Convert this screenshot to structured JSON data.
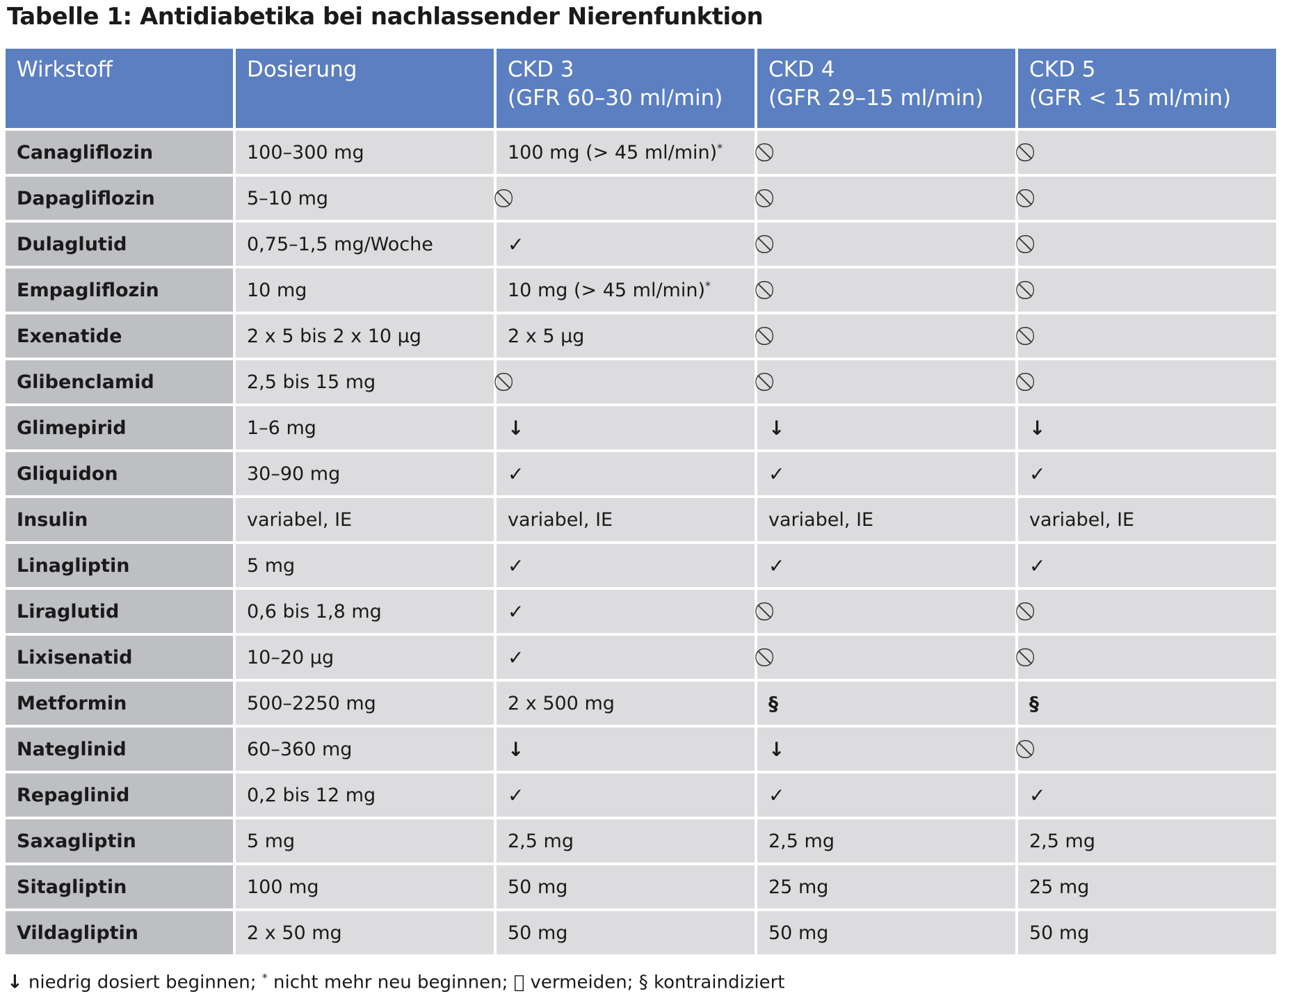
{
  "title": "Tabelle 1: Antidiabetika bei nachlassender Nierenfunktion",
  "headers": [
    [
      "Wirkstoff"
    ],
    [
      "Dosierung"
    ],
    [
      "CKD 3",
      "(GFR 60–30 ml/min)"
    ],
    [
      "CKD 4",
      "(GFR 29–15 ml/min)"
    ],
    [
      "CKD 5",
      "(GFR < 15 ml/min)"
    ]
  ],
  "rows": [
    [
      "Canagliflozin",
      "100–300 mg",
      "100 mg (> 45 ml/min)*",
      "⃠",
      "⃠"
    ],
    [
      "Dapagliflozin",
      "5–10 mg",
      "⃠",
      "⃠",
      "⃠"
    ],
    [
      "Dulaglutid",
      "0,75–1,5 mg/Woche",
      "✓",
      "⃠",
      "⃠"
    ],
    [
      "Empagliflozin",
      "10 mg",
      "10 mg (> 45 ml/min)*",
      "⃠",
      "⃠"
    ],
    [
      "Exenatide",
      "2 x 5 bis 2 x 10 µg",
      "2 x 5 µg",
      "⃠",
      "⃠"
    ],
    [
      "Glibenclamid",
      "2,5 bis 15 mg",
      "⃠",
      "⃠",
      "⃠"
    ],
    [
      "Glimepirid",
      "1–6 mg",
      "↓",
      "↓",
      "↓"
    ],
    [
      "Gliquidon",
      "30–90 mg",
      "✓",
      "✓",
      "✓"
    ],
    [
      "Insulin",
      "variabel, IE",
      "variabel, IE",
      "variabel, IE",
      "variabel, IE"
    ],
    [
      "Linagliptin",
      "5 mg",
      "✓",
      "✓",
      "✓"
    ],
    [
      "Liraglutid",
      "0,6 bis 1,8 mg",
      "✓",
      "⃠",
      "⃠"
    ],
    [
      "Lixisenatid",
      "10–20 µg",
      "✓",
      "⃠",
      "⃠"
    ],
    [
      "Metformin",
      "500–2250 mg",
      "2 x 500 mg",
      "§",
      "§"
    ],
    [
      "Nateglinid",
      "60–360 mg",
      "↓",
      "↓",
      "⃠"
    ],
    [
      "Repaglinid",
      "0,2 bis 12 mg",
      "✓",
      "✓",
      "✓"
    ],
    [
      "Saxagliptin",
      "5 mg",
      "2,5 mg",
      "2,5 mg",
      "2,5 mg"
    ],
    [
      "Sitagliptin",
      "100 mg",
      "50 mg",
      "25 mg",
      "25 mg"
    ],
    [
      "Vildagliptin",
      "2 x 50 mg",
      "50 mg",
      "50 mg",
      "50 mg"
    ]
  ],
  "footnote": {
    "arrow_symbol": "↓",
    "arrow_text": " niedrig dosiert beginnen; ",
    "star_symbol": "*",
    "star_text": " nicht mehr neu beginnen; ",
    "avoid_symbol": "⃠",
    "avoid_text": " vermeiden; ",
    "contra_symbol": "§",
    "contra_text": " kontraindiziert"
  },
  "colors": {
    "header_bg": "#5b7fc0",
    "name_col_bg": "#bebfc3",
    "cell_bg": "#dcdcde"
  }
}
